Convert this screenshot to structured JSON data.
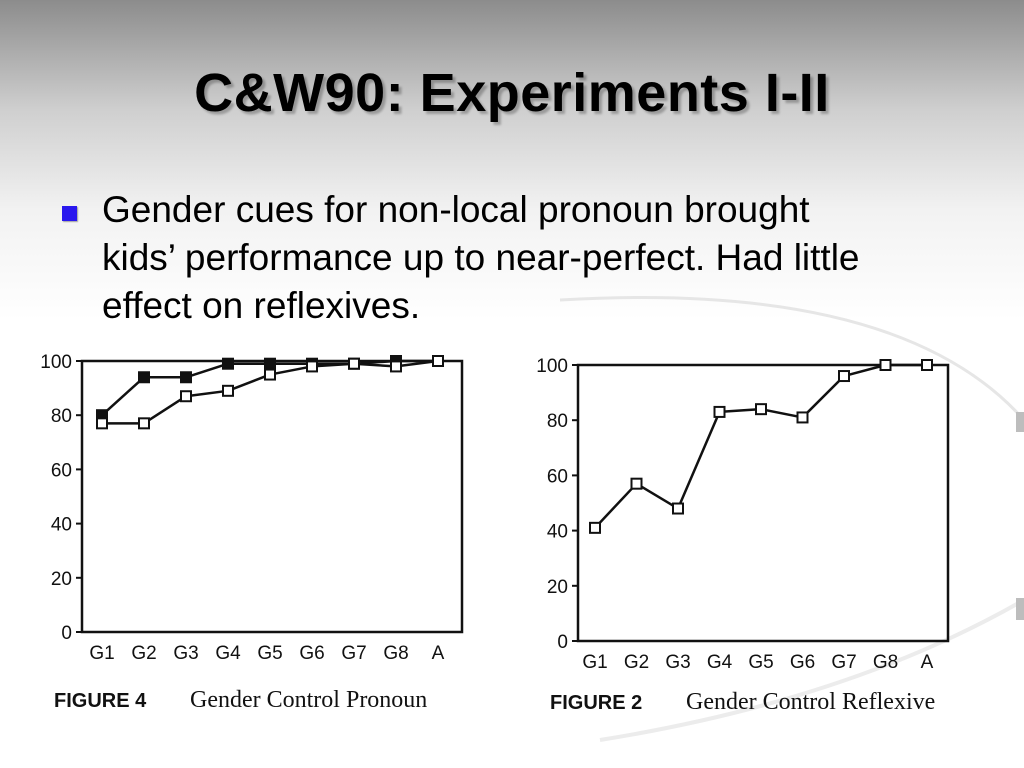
{
  "slide": {
    "title": "C&W90: Experiments I-II",
    "bullet": "Gender cues for non-local pronoun brought kids’ performance up to near-perfect. Had little effect on reflexives."
  },
  "chart_data": [
    {
      "type": "line",
      "figure_label": "FIGURE 4",
      "title": "Gender Control Pronoun",
      "categories": [
        "G1",
        "G2",
        "G3",
        "G4",
        "G5",
        "G6",
        "G7",
        "G8",
        "A"
      ],
      "yticks": [
        "100",
        "80",
        "60",
        "40",
        "20",
        "0"
      ],
      "ylim": [
        0,
        100
      ],
      "series": [
        {
          "marker": "filled-square",
          "values": [
            80,
            94,
            94,
            99,
            99,
            99,
            99,
            100,
            100
          ]
        },
        {
          "marker": "open-square",
          "values": [
            77,
            77,
            87,
            89,
            95,
            98,
            99,
            98,
            100
          ]
        }
      ],
      "grid": false
    },
    {
      "type": "line",
      "figure_label": "FIGURE 2",
      "title": "Gender Control Reflexive",
      "categories": [
        "G1",
        "G2",
        "G3",
        "G4",
        "G5",
        "G6",
        "G7",
        "G8",
        "A"
      ],
      "yticks": [
        "100",
        "80",
        "60",
        "40",
        "20",
        "0"
      ],
      "ylim": [
        0,
        100
      ],
      "series": [
        {
          "marker": "open-square",
          "values": [
            41,
            57,
            48,
            83,
            84,
            81,
            96,
            100,
            100
          ]
        }
      ],
      "grid": false
    }
  ]
}
